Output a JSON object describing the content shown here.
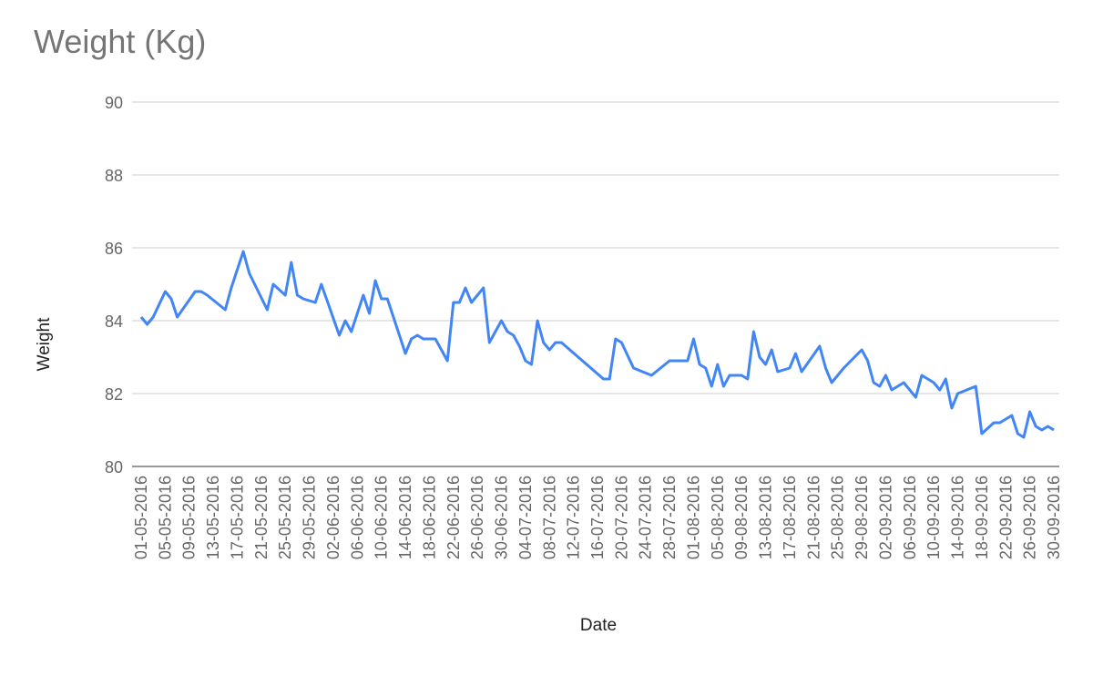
{
  "chart_data": {
    "type": "line",
    "title": "Weight (Kg)",
    "x_label": "Date",
    "y_label": "Weight",
    "x": [
      "01-05-2016",
      "02-05-2016",
      "03-05-2016",
      "05-05-2016",
      "06-05-2016",
      "07-05-2016",
      "10-05-2016",
      "11-05-2016",
      "12-05-2016",
      "15-05-2016",
      "16-05-2016",
      "18-05-2016",
      "19-05-2016",
      "22-05-2016",
      "23-05-2016",
      "25-05-2016",
      "26-05-2016",
      "27-05-2016",
      "28-05-2016",
      "30-05-2016",
      "31-05-2016",
      "03-06-2016",
      "04-06-2016",
      "05-06-2016",
      "07-06-2016",
      "08-06-2016",
      "09-06-2016",
      "10-06-2016",
      "11-06-2016",
      "14-06-2016",
      "15-06-2016",
      "16-06-2016",
      "17-06-2016",
      "19-06-2016",
      "21-06-2016",
      "22-06-2016",
      "23-06-2016",
      "24-06-2016",
      "25-06-2016",
      "27-06-2016",
      "28-06-2016",
      "30-06-2016",
      "01-07-2016",
      "02-07-2016",
      "03-07-2016",
      "04-07-2016",
      "05-07-2016",
      "06-07-2016",
      "07-07-2016",
      "08-07-2016",
      "09-07-2016",
      "10-07-2016",
      "17-07-2016",
      "18-07-2016",
      "19-07-2016",
      "20-07-2016",
      "22-07-2016",
      "25-07-2016",
      "28-07-2016",
      "31-07-2016",
      "01-08-2016",
      "02-08-2016",
      "03-08-2016",
      "04-08-2016",
      "05-08-2016",
      "06-08-2016",
      "07-08-2016",
      "09-08-2016",
      "10-08-2016",
      "11-08-2016",
      "12-08-2016",
      "13-08-2016",
      "14-08-2016",
      "15-08-2016",
      "17-08-2016",
      "18-08-2016",
      "19-08-2016",
      "22-08-2016",
      "23-08-2016",
      "24-08-2016",
      "26-08-2016",
      "29-08-2016",
      "30-08-2016",
      "31-08-2016",
      "01-09-2016",
      "02-09-2016",
      "03-09-2016",
      "05-09-2016",
      "07-09-2016",
      "08-09-2016",
      "10-09-2016",
      "11-09-2016",
      "12-09-2016",
      "13-09-2016",
      "14-09-2016",
      "17-09-2016",
      "18-09-2016",
      "20-09-2016",
      "21-09-2016",
      "23-09-2016",
      "24-09-2016",
      "25-09-2016",
      "26-09-2016",
      "27-09-2016",
      "28-09-2016",
      "29-09-2016",
      "30-09-2016"
    ],
    "series": [
      {
        "name": "Weight",
        "color": "#4285f4",
        "values": [
          84.1,
          83.9,
          84.1,
          84.8,
          84.6,
          84.1,
          84.8,
          84.8,
          84.7,
          84.3,
          84.9,
          85.9,
          85.3,
          84.3,
          85.0,
          84.7,
          85.6,
          84.7,
          84.6,
          84.5,
          85.0,
          83.6,
          84.0,
          83.7,
          84.7,
          84.2,
          85.1,
          84.6,
          84.6,
          83.1,
          83.5,
          83.6,
          83.5,
          83.5,
          82.9,
          84.5,
          84.5,
          84.9,
          84.5,
          84.9,
          83.4,
          84.0,
          83.7,
          83.6,
          83.3,
          82.9,
          82.8,
          84.0,
          83.4,
          83.2,
          83.4,
          83.4,
          82.4,
          82.4,
          83.5,
          83.4,
          82.7,
          82.5,
          82.9,
          82.9,
          83.5,
          82.8,
          82.7,
          82.2,
          82.8,
          82.2,
          82.5,
          82.5,
          82.4,
          83.7,
          83.0,
          82.8,
          83.2,
          82.6,
          82.7,
          83.1,
          82.6,
          83.3,
          82.7,
          82.3,
          82.7,
          83.2,
          82.9,
          82.3,
          82.2,
          82.5,
          82.1,
          82.3,
          81.9,
          82.5,
          82.3,
          82.1,
          82.4,
          81.6,
          82.0,
          82.2,
          80.9,
          81.2,
          81.2,
          81.4,
          80.9,
          80.8,
          81.5,
          81.1,
          81.0,
          81.1,
          81.0
        ]
      }
    ],
    "xlim": [
      "01-05-2016",
      "30-09-2016"
    ],
    "xticks": [
      "01-05-2016",
      "05-05-2016",
      "09-05-2016",
      "13-05-2016",
      "17-05-2016",
      "21-05-2016",
      "25-05-2016",
      "29-05-2016",
      "02-06-2016",
      "06-06-2016",
      "10-06-2016",
      "14-06-2016",
      "18-06-2016",
      "22-06-2016",
      "26-06-2016",
      "30-06-2016",
      "04-07-2016",
      "08-07-2016",
      "12-07-2016",
      "16-07-2016",
      "20-07-2016",
      "24-07-2016",
      "28-07-2016",
      "01-08-2016",
      "05-08-2016",
      "09-08-2016",
      "13-08-2016",
      "17-08-2016",
      "21-08-2016",
      "25-08-2016",
      "29-08-2016",
      "02-09-2016",
      "06-09-2016",
      "10-09-2016",
      "14-09-2016",
      "18-09-2016",
      "22-09-2016",
      "26-09-2016",
      "30-09-2016"
    ],
    "ylim": [
      80,
      90
    ],
    "yticks": [
      80,
      82,
      84,
      86,
      88,
      90
    ],
    "grid": true
  }
}
